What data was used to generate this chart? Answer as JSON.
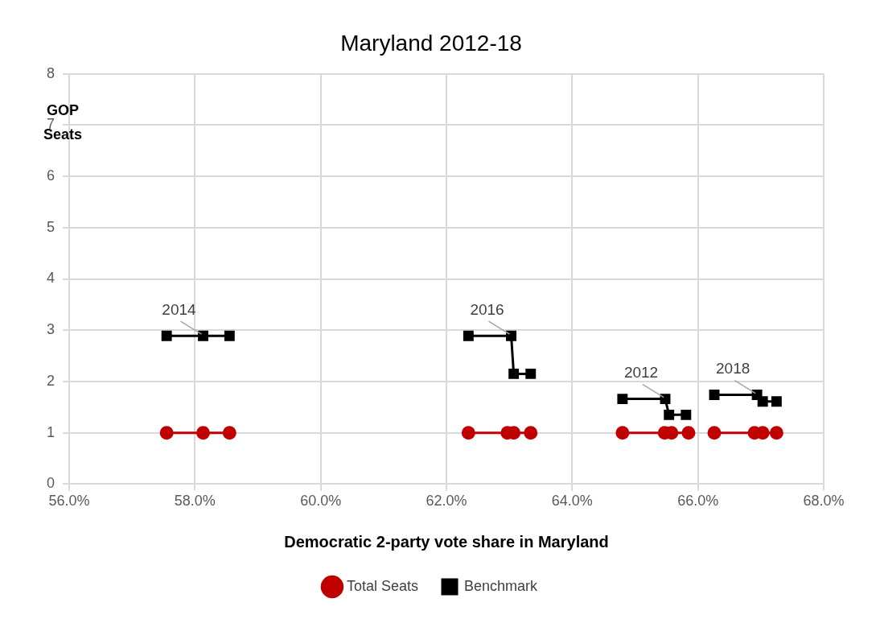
{
  "chart_data": {
    "type": "line",
    "title": "Maryland 2012-18",
    "xlabel": "Democratic 2-party vote share in Maryland",
    "ylabel": "GOP\nSeats",
    "xlim": [
      56,
      68
    ],
    "xticks": [
      {
        "value": 56,
        "label": "56.0%"
      },
      {
        "value": 58,
        "label": "58.0%"
      },
      {
        "value": 60,
        "label": "60.0%"
      },
      {
        "value": 62,
        "label": "62.0%"
      },
      {
        "value": 64,
        "label": "64.0%"
      },
      {
        "value": 66,
        "label": "66.0%"
      },
      {
        "value": 68,
        "label": "68.0%"
      }
    ],
    "ylim": [
      0,
      8
    ],
    "yticks": [
      0,
      1,
      2,
      3,
      4,
      5,
      6,
      7,
      8
    ],
    "grid": true,
    "legend": "bottom",
    "series": [
      {
        "name": "Total Seats",
        "color": "#c00000",
        "marker": "circle",
        "x": [
          57.55,
          58.13,
          58.55,
          null,
          62.35,
          62.97,
          63.07,
          63.34,
          null,
          64.8,
          65.47,
          65.58,
          65.85,
          null,
          66.26,
          66.9,
          67.03,
          67.25
        ],
        "values": [
          1,
          1,
          1,
          null,
          1,
          1,
          1,
          1,
          null,
          1,
          1,
          1,
          1,
          null,
          1,
          1,
          1,
          1
        ]
      },
      {
        "name": "Benchmark",
        "color": "#000000",
        "marker": "square",
        "x": [
          57.55,
          58.13,
          58.55,
          null,
          62.35,
          63.03,
          63.07,
          63.34,
          null,
          64.8,
          65.48,
          65.54,
          65.81,
          null,
          66.26,
          66.94,
          67.03,
          67.25
        ],
        "values": [
          2.89,
          2.89,
          2.89,
          null,
          2.89,
          2.89,
          2.15,
          2.15,
          null,
          1.66,
          1.66,
          1.35,
          1.35,
          null,
          1.74,
          1.74,
          1.61,
          1.61
        ]
      }
    ],
    "annotations": [
      {
        "text": "2014",
        "x": 58.13,
        "y": 2.89
      },
      {
        "text": "2016",
        "x": 63.03,
        "y": 2.89
      },
      {
        "text": "2012",
        "x": 65.48,
        "y": 1.66
      },
      {
        "text": "2018",
        "x": 66.94,
        "y": 1.74
      }
    ]
  }
}
